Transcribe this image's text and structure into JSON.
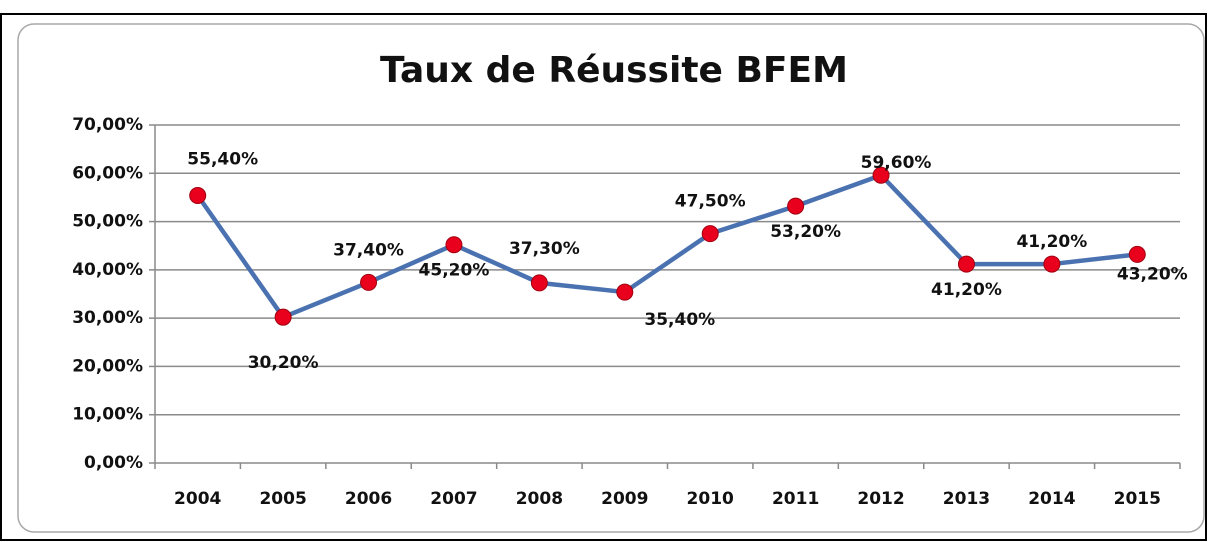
{
  "chart_data": {
    "type": "line",
    "title": "Taux de Réussite BFEM",
    "categories": [
      "2004",
      "2005",
      "2006",
      "2007",
      "2008",
      "2009",
      "2010",
      "2011",
      "2012",
      "2013",
      "2014",
      "2015"
    ],
    "series": [
      {
        "color": "#4a72b0",
        "marker_color": "#e8001c",
        "values": [
          55.4,
          30.2,
          37.4,
          45.2,
          37.3,
          35.4,
          47.5,
          53.2,
          59.6,
          41.2,
          41.2,
          43.2
        ],
        "value_labels": [
          "55,40%",
          "30,20%",
          "37,40%",
          "45,20%",
          "37,30%",
          "35,40%",
          "47,50%",
          "53,20%",
          "59,60%",
          "41,20%",
          "41,20%",
          "43,20%"
        ]
      }
    ],
    "ylim": [
      0,
      70
    ],
    "yticks": [
      {
        "value": 0,
        "label": "0,00%"
      },
      {
        "value": 10,
        "label": "10,00%"
      },
      {
        "value": 20,
        "label": "20,00%"
      },
      {
        "value": 30,
        "label": "30,00%"
      },
      {
        "value": 40,
        "label": "40,00%"
      },
      {
        "value": 50,
        "label": "50,00%"
      },
      {
        "value": 60,
        "label": "60,00%"
      },
      {
        "value": 70,
        "label": "70,00%"
      }
    ],
    "grid": true
  }
}
